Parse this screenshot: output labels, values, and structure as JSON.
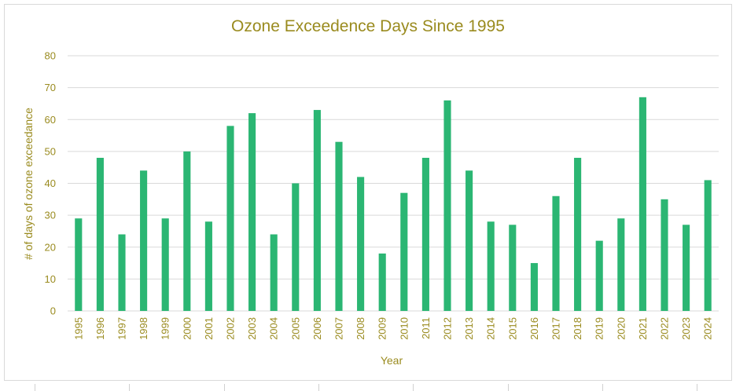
{
  "chart_data": {
    "type": "bar",
    "title": "Ozone Exceedence Days Since 1995",
    "xlabel": "Year",
    "ylabel": "# of days of ozone exceedance",
    "ylim": [
      0,
      80
    ],
    "yticks": [
      0,
      10,
      20,
      30,
      40,
      50,
      60,
      70,
      80
    ],
    "grid": true,
    "legend": "none",
    "bar_color": "#2bb673",
    "categories": [
      "1995",
      "1996",
      "1997",
      "1998",
      "1999",
      "2000",
      "2001",
      "2002",
      "2003",
      "2004",
      "2005",
      "2006",
      "2007",
      "2008",
      "2009",
      "2010",
      "2011",
      "2012",
      "2013",
      "2014",
      "2015",
      "2016",
      "2017",
      "2018",
      "2019",
      "2020",
      "2021",
      "2022",
      "2023",
      "2024"
    ],
    "values": [
      29,
      48,
      24,
      44,
      29,
      50,
      28,
      58,
      62,
      24,
      40,
      63,
      53,
      42,
      18,
      37,
      48,
      66,
      44,
      28,
      27,
      15,
      36,
      48,
      22,
      29,
      67,
      35,
      27,
      41
    ]
  },
  "colors": {
    "text": "#9a8b1f",
    "grid": "#d9d9d9",
    "bar": "#2bb673"
  }
}
